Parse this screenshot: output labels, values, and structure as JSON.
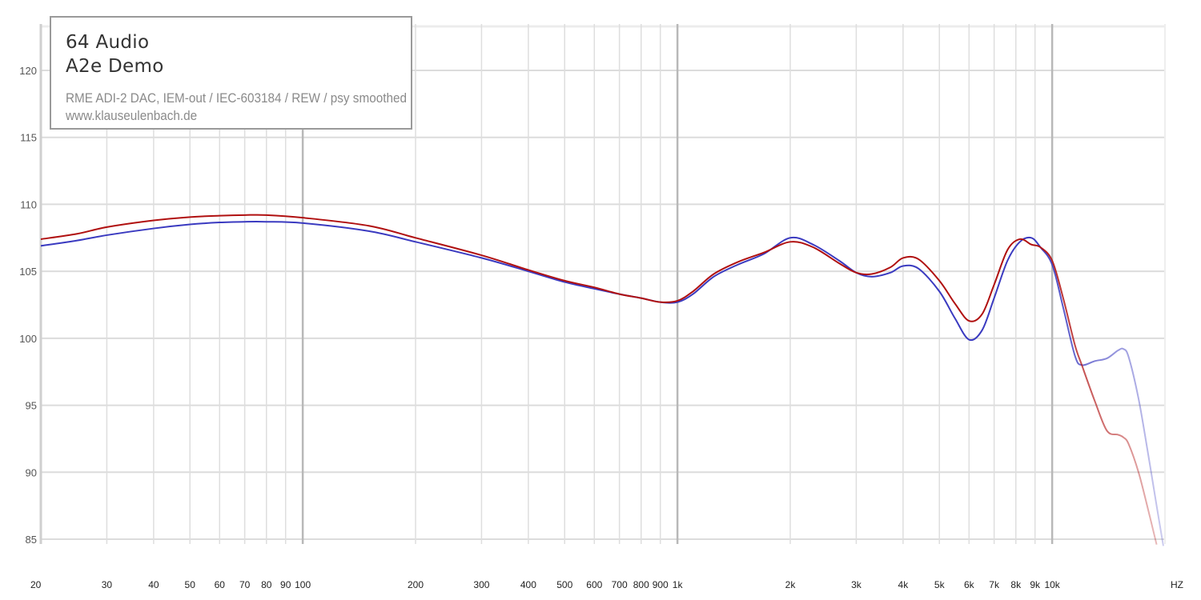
{
  "legend": {
    "brand": "64 Audio",
    "model": "A2e Demo",
    "setup": "RME ADI-2 DAC, IEM-out / IEC-603184 / REW / psy smoothed",
    "site": "www.klauseulenbach.de"
  },
  "chart_data": {
    "type": "line",
    "title": "",
    "xlabel": "HZ",
    "ylabel": "",
    "x_scale": "log",
    "xlim": [
      20,
      20000
    ],
    "ylim": [
      85,
      122
    ],
    "grid": true,
    "x_ticks": [
      {
        "v": 20,
        "label": "20"
      },
      {
        "v": 30,
        "label": "30"
      },
      {
        "v": 40,
        "label": "40"
      },
      {
        "v": 50,
        "label": "50"
      },
      {
        "v": 60,
        "label": "60"
      },
      {
        "v": 70,
        "label": "70"
      },
      {
        "v": 80,
        "label": "80"
      },
      {
        "v": 90,
        "label": "90"
      },
      {
        "v": 100,
        "label": "100"
      },
      {
        "v": 200,
        "label": "200"
      },
      {
        "v": 300,
        "label": "300"
      },
      {
        "v": 400,
        "label": "400"
      },
      {
        "v": 500,
        "label": "500"
      },
      {
        "v": 600,
        "label": "600"
      },
      {
        "v": 700,
        "label": "700"
      },
      {
        "v": 800,
        "label": "800"
      },
      {
        "v": 900,
        "label": "900"
      },
      {
        "v": 1000,
        "label": "1k"
      },
      {
        "v": 2000,
        "label": "2k"
      },
      {
        "v": 3000,
        "label": "3k"
      },
      {
        "v": 4000,
        "label": "4k"
      },
      {
        "v": 5000,
        "label": "5k"
      },
      {
        "v": 6000,
        "label": "6k"
      },
      {
        "v": 7000,
        "label": "7k"
      },
      {
        "v": 8000,
        "label": "8k"
      },
      {
        "v": 9000,
        "label": "9k"
      },
      {
        "v": 10000,
        "label": "10k"
      }
    ],
    "y_ticks": [
      85,
      90,
      95,
      100,
      105,
      110,
      115,
      120
    ],
    "series": [
      {
        "color": "#3a3ac0",
        "points": [
          [
            20,
            106.9
          ],
          [
            25,
            107.3
          ],
          [
            30,
            107.7
          ],
          [
            40,
            108.2
          ],
          [
            50,
            108.5
          ],
          [
            60,
            108.65
          ],
          [
            70,
            108.7
          ],
          [
            80,
            108.7
          ],
          [
            100,
            108.6
          ],
          [
            150,
            108.0
          ],
          [
            200,
            107.2
          ],
          [
            300,
            106.0
          ],
          [
            400,
            105.0
          ],
          [
            500,
            104.2
          ],
          [
            600,
            103.7
          ],
          [
            700,
            103.3
          ],
          [
            800,
            103.0
          ],
          [
            900,
            102.7
          ],
          [
            1000,
            102.7
          ],
          [
            1100,
            103.3
          ],
          [
            1250,
            104.6
          ],
          [
            1450,
            105.5
          ],
          [
            1700,
            106.3
          ],
          [
            2000,
            107.5
          ],
          [
            2300,
            107.0
          ],
          [
            2700,
            105.8
          ],
          [
            3000,
            104.9
          ],
          [
            3300,
            104.6
          ],
          [
            3700,
            104.9
          ],
          [
            4000,
            105.4
          ],
          [
            4400,
            105.2
          ],
          [
            5000,
            103.5
          ],
          [
            5500,
            101.5
          ],
          [
            6000,
            99.9
          ],
          [
            6500,
            100.6
          ],
          [
            7000,
            103.0
          ],
          [
            7600,
            105.8
          ],
          [
            8200,
            107.2
          ],
          [
            8800,
            107.5
          ],
          [
            9300,
            106.8
          ],
          [
            10000,
            105.5
          ],
          [
            10700,
            102.3
          ],
          [
            11500,
            98.7
          ],
          [
            12000,
            98.0
          ],
          [
            13000,
            98.3
          ],
          [
            14000,
            98.5
          ],
          [
            15000,
            99.1
          ],
          [
            15500,
            99.2
          ],
          [
            16000,
            98.6
          ],
          [
            17000,
            95.5
          ],
          [
            18000,
            91.5
          ],
          [
            19000,
            87.5
          ],
          [
            19800,
            84.5
          ]
        ]
      },
      {
        "color": "#b01010",
        "points": [
          [
            20,
            107.4
          ],
          [
            25,
            107.8
          ],
          [
            30,
            108.3
          ],
          [
            40,
            108.8
          ],
          [
            50,
            109.05
          ],
          [
            60,
            109.15
          ],
          [
            70,
            109.2
          ],
          [
            80,
            109.2
          ],
          [
            100,
            109.0
          ],
          [
            150,
            108.4
          ],
          [
            200,
            107.5
          ],
          [
            300,
            106.2
          ],
          [
            400,
            105.1
          ],
          [
            500,
            104.3
          ],
          [
            600,
            103.8
          ],
          [
            700,
            103.3
          ],
          [
            800,
            103.0
          ],
          [
            900,
            102.7
          ],
          [
            1000,
            102.8
          ],
          [
            1100,
            103.5
          ],
          [
            1250,
            104.8
          ],
          [
            1450,
            105.7
          ],
          [
            1700,
            106.4
          ],
          [
            2000,
            107.2
          ],
          [
            2300,
            106.8
          ],
          [
            2700,
            105.6
          ],
          [
            3000,
            104.9
          ],
          [
            3300,
            104.8
          ],
          [
            3700,
            105.3
          ],
          [
            4000,
            106.0
          ],
          [
            4400,
            105.9
          ],
          [
            5000,
            104.3
          ],
          [
            5500,
            102.6
          ],
          [
            6000,
            101.3
          ],
          [
            6500,
            101.8
          ],
          [
            7000,
            104.0
          ],
          [
            7600,
            106.6
          ],
          [
            8200,
            107.4
          ],
          [
            8800,
            107.0
          ],
          [
            9300,
            106.8
          ],
          [
            10000,
            105.8
          ],
          [
            10700,
            103.0
          ],
          [
            11500,
            99.5
          ],
          [
            12000,
            98.0
          ],
          [
            13000,
            95.3
          ],
          [
            14000,
            93.1
          ],
          [
            15000,
            92.8
          ],
          [
            15500,
            92.6
          ],
          [
            16000,
            92.1
          ],
          [
            17000,
            90.0
          ],
          [
            18000,
            87.3
          ],
          [
            19000,
            84.6
          ]
        ]
      }
    ]
  }
}
